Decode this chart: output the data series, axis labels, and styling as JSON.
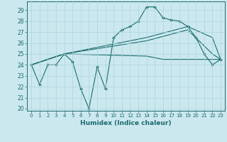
{
  "xlabel": "Humidex (Indice chaleur)",
  "bg_color": "#cce8ef",
  "line_color": "#1a6b6b",
  "grid_color": "#aad4dc",
  "xlim": [
    -0.5,
    23.5
  ],
  "ylim": [
    19.8,
    29.8
  ],
  "yticks": [
    20,
    21,
    22,
    23,
    24,
    25,
    26,
    27,
    28,
    29
  ],
  "xticks": [
    0,
    1,
    2,
    3,
    4,
    5,
    6,
    7,
    8,
    9,
    10,
    11,
    12,
    13,
    14,
    15,
    16,
    17,
    18,
    19,
    20,
    21,
    22,
    23
  ],
  "series": [
    {
      "x": [
        0,
        1,
        2,
        3,
        4,
        5,
        6,
        7,
        8,
        9,
        10,
        11,
        12,
        13,
        14,
        15,
        16,
        17,
        18,
        19,
        20,
        21,
        22,
        23
      ],
      "y": [
        24,
        22.2,
        24,
        24,
        25,
        24.3,
        21.8,
        20.0,
        23.8,
        21.8,
        26.5,
        27.2,
        27.5,
        28.0,
        29.3,
        29.3,
        28.3,
        28.1,
        28.0,
        27.5,
        26.5,
        25.0,
        24.0,
        24.5
      ],
      "marker": true
    },
    {
      "x": [
        0,
        4,
        14,
        16,
        22,
        23
      ],
      "y": [
        24,
        25,
        24.8,
        24.5,
        24.5,
        24.5
      ],
      "marker": false
    },
    {
      "x": [
        0,
        4,
        14,
        19,
        22,
        23
      ],
      "y": [
        24,
        25,
        26.2,
        27.2,
        25.0,
        24.5
      ],
      "marker": false
    },
    {
      "x": [
        0,
        4,
        14,
        19,
        22,
        23
      ],
      "y": [
        24,
        25,
        26.5,
        27.5,
        26.5,
        24.5
      ],
      "marker": false
    }
  ]
}
